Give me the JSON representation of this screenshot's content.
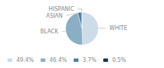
{
  "chart_data": {
    "type": "pie",
    "categories": [
      "WHITE",
      "BLACK",
      "ASIAN",
      "HISPANIC"
    ],
    "values": [
      49.4,
      46.4,
      3.7,
      0.5
    ],
    "value_labels": [
      "49.4%",
      "46.4%",
      "3.7%",
      "0.5%"
    ],
    "colors": [
      "#ccdce8",
      "#8aafc4",
      "#4a7fa0",
      "#1a3a52"
    ],
    "legend": "lower left"
  }
}
